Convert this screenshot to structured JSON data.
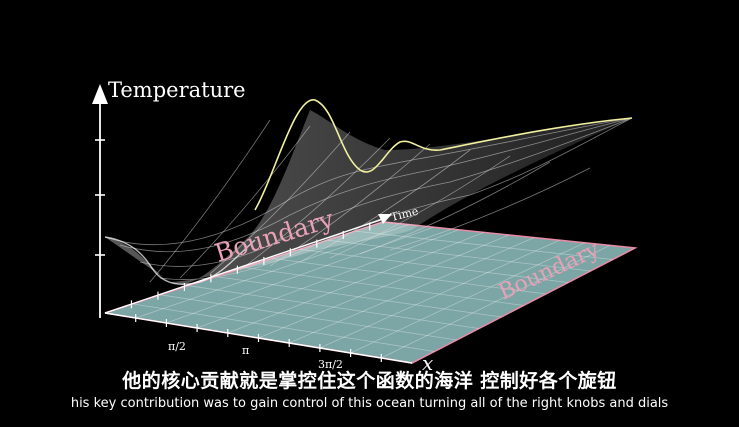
{
  "axes": {
    "temperature_label": "Temperature",
    "time_label": "Time",
    "x_label": "x",
    "tick_labels": [
      "π/2",
      "π",
      "3π/2"
    ]
  },
  "boundary_labels": [
    "Boundary",
    "Boundary"
  ],
  "subtitles": {
    "chinese": "他的核心贡献就是掌控住这个函数的海洋  控制好各个旋钮",
    "english": "his key contribution was to gain control of this ocean turning all of the right knobs and dials"
  },
  "colors": {
    "background": "#000000",
    "plane_fill": "#9fd3d3",
    "boundary_edge": "#e58ca6",
    "boundary_text": "#e8a1b6",
    "curve": "#f2f0a0",
    "surface_grid": "#d8d8d8"
  }
}
